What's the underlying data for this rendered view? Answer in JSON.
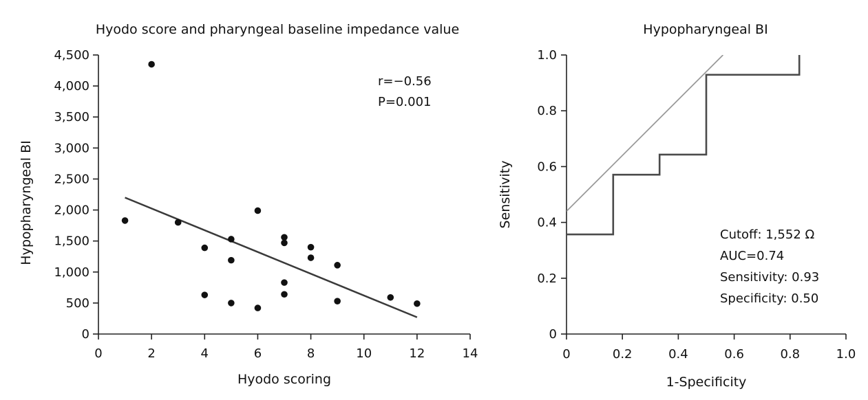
{
  "chart_data": [
    {
      "type": "scatter",
      "title": "Hyodo score and pharyngeal baseline impedance value",
      "xlabel": "Hyodo scoring",
      "ylabel": "Hypopharyngeal BI",
      "xlim": [
        0,
        14
      ],
      "ylim": [
        0,
        4500
      ],
      "x_ticks": [
        0,
        2,
        4,
        6,
        8,
        10,
        12,
        14
      ],
      "x_tick_labels": [
        "0",
        "2",
        "4",
        "6",
        "8",
        "10",
        "12",
        "14"
      ],
      "y_ticks": [
        0,
        500,
        1000,
        1500,
        2000,
        2500,
        3000,
        3500,
        4000,
        4500
      ],
      "y_tick_labels": [
        "0",
        "500",
        "1,000",
        "1,500",
        "2,000",
        "2,500",
        "3,000",
        "3,500",
        "4,000",
        "4,500"
      ],
      "grid": false,
      "points": [
        {
          "x": 1,
          "y": 1830
        },
        {
          "x": 2,
          "y": 4350
        },
        {
          "x": 3,
          "y": 1800
        },
        {
          "x": 4,
          "y": 1390
        },
        {
          "x": 4,
          "y": 630
        },
        {
          "x": 5,
          "y": 1530
        },
        {
          "x": 5,
          "y": 1190
        },
        {
          "x": 5,
          "y": 500
        },
        {
          "x": 6,
          "y": 1990
        },
        {
          "x": 6,
          "y": 420
        },
        {
          "x": 7,
          "y": 1560
        },
        {
          "x": 7,
          "y": 1470
        },
        {
          "x": 7,
          "y": 830
        },
        {
          "x": 7,
          "y": 640
        },
        {
          "x": 8,
          "y": 1400
        },
        {
          "x": 8,
          "y": 1230
        },
        {
          "x": 9,
          "y": 1110
        },
        {
          "x": 9,
          "y": 530
        },
        {
          "x": 11,
          "y": 590
        },
        {
          "x": 12,
          "y": 490
        }
      ],
      "trend_line": {
        "x": [
          1,
          12
        ],
        "y": [
          2200,
          270
        ]
      },
      "annotations": [
        "r=−0.56",
        "P=0.001"
      ]
    },
    {
      "type": "line",
      "title": "Hypopharyngeal BI",
      "xlabel": "1-Specificity",
      "ylabel": "Sensitivity",
      "xlim": [
        0,
        1.0
      ],
      "ylim": [
        0,
        1.0
      ],
      "x_ticks": [
        0,
        0.2,
        0.4,
        0.6,
        0.8,
        1.0
      ],
      "x_tick_labels": [
        "0",
        "0.2",
        "0.4",
        "0.6",
        "0.8",
        "1.0"
      ],
      "y_ticks": [
        0,
        0.2,
        0.4,
        0.6,
        0.8,
        1.0
      ],
      "y_tick_labels": [
        "0",
        "0.2",
        "0.4",
        "0.6",
        "0.8",
        "1.0"
      ],
      "grid": false,
      "series": [
        {
          "x": [
            0,
            0.167,
            0.167,
            0.333,
            0.333,
            0.5,
            0.5,
            0.833,
            0.833
          ],
          "y": [
            0.357,
            0.357,
            0.571,
            0.571,
            0.643,
            0.643,
            0.929,
            0.929,
            1.0
          ],
          "color": "#4a4a4a"
        },
        {
          "x": [
            0,
            0.56
          ],
          "y": [
            0.44,
            1.0
          ],
          "color": "#9a9a9a"
        }
      ],
      "annotations": [
        "Cutoff: 1,552 Ω",
        "AUC=0.74",
        "Sensitivity: 0.93",
        "Specificity: 0.50"
      ]
    }
  ]
}
